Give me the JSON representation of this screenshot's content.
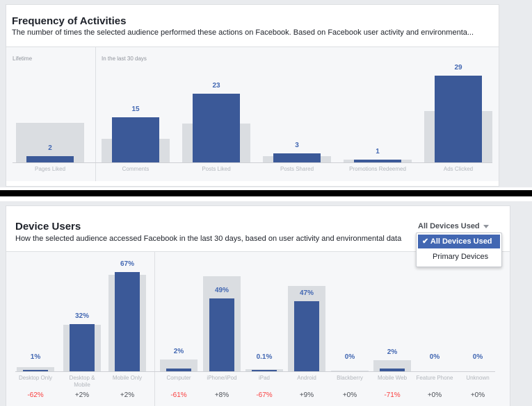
{
  "frequency": {
    "title": "Frequency of Activities",
    "subtitle": "The number of times the selected audience performed these actions on Facebook. Based on Facebook user activity and environmenta...",
    "lifetime_label": "Lifetime",
    "last30_label": "In the last 30 days"
  },
  "devices": {
    "title": "Device Users",
    "subtitle": "How the selected audience accessed Facebook in the last 30 days, based on user activity and environmental data",
    "dropdown": {
      "selected_label": "All Devices Used",
      "options": [
        "All Devices Used",
        "Primary Devices"
      ],
      "checkmark": "✔"
    }
  },
  "chart_data": [
    {
      "type": "bar",
      "title": "Frequency of Activities",
      "categories": [
        "Pages Liked",
        "Comments",
        "Posts Liked",
        "Posts Shared",
        "Promotions Redeemed",
        "Ads Clicked"
      ],
      "values": [
        2,
        15,
        23,
        3,
        1,
        29
      ],
      "value_labels": [
        "2",
        "15",
        "23",
        "3",
        "1",
        "29"
      ],
      "groups": [
        "Lifetime",
        "In the last 30 days"
      ],
      "colors": {
        "audience": "#3b5998",
        "comparison": "#dadde1"
      }
    },
    {
      "type": "bar",
      "title": "Device Users",
      "categories": [
        "Desktop Only",
        "Desktop & Mobile",
        "Mobile Only",
        "Computer",
        "iPhone/iPod",
        "iPad",
        "Android",
        "Blackberry",
        "Mobile Web",
        "Feature Phone",
        "Unknown"
      ],
      "values": [
        1,
        32,
        67,
        2,
        49,
        0.1,
        47,
        0,
        2,
        0,
        0
      ],
      "value_labels": [
        "1%",
        "32%",
        "67%",
        "2%",
        "49%",
        "0.1%",
        "47%",
        "0%",
        "2%",
        "0%",
        "0%"
      ],
      "deltas": [
        "-62%",
        "+2%",
        "+2%",
        "-61%",
        "+8%",
        "-67%",
        "+9%",
        "+0%",
        "-71%",
        "+0%",
        "+0%"
      ],
      "ylim": [
        0,
        100
      ],
      "colors": {
        "audience": "#3b5998",
        "comparison": "#dadde1",
        "negative": "#fa3e3e",
        "neutral": "#4b4f56"
      }
    }
  ]
}
